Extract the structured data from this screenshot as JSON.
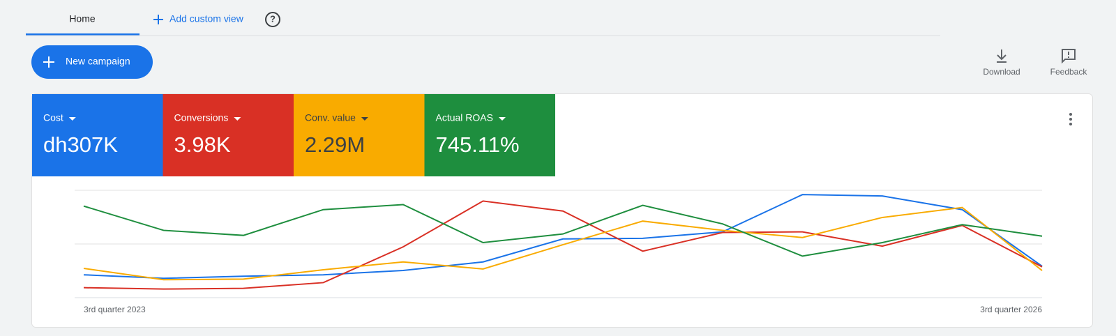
{
  "tabs": {
    "home": "Home",
    "add_view": "Add custom view"
  },
  "toolbar": {
    "new_campaign": "New campaign",
    "download": "Download",
    "feedback": "Feedback"
  },
  "chart_data": {
    "type": "line",
    "categories": [
      "3rd quarter 2023",
      null,
      null,
      null,
      null,
      null,
      null,
      null,
      null,
      null,
      null,
      null,
      "3rd quarter 2026"
    ],
    "ylim": [
      0,
      100
    ],
    "series": [
      {
        "name": "Cost",
        "summary": "dh307K",
        "color": "#1a73e8",
        "values": [
          21.3,
          18,
          20,
          21.3,
          25.3,
          33.3,
          54.7,
          55.3,
          61.3,
          96,
          94.7,
          82,
          29.3
        ]
      },
      {
        "name": "Conversions",
        "summary": "3.98K",
        "color": "#d93025",
        "values": [
          9.3,
          8,
          8.7,
          14,
          47.3,
          90,
          80.7,
          43.3,
          60.7,
          61.3,
          48,
          67.3,
          28.7
        ]
      },
      {
        "name": "Conv. value",
        "summary": "2.29M",
        "color": "#f9ab00",
        "values": [
          27.3,
          16.7,
          17.3,
          26,
          33.3,
          26.7,
          49.3,
          71.3,
          62.7,
          56,
          74.7,
          84,
          25.3
        ]
      },
      {
        "name": "Actual ROAS",
        "summary": "745.11%",
        "color": "#1e8e3e",
        "values": [
          85.3,
          62.7,
          58,
          82,
          86.7,
          51.3,
          59.3,
          86,
          68.7,
          38.7,
          51.3,
          68,
          57.3
        ]
      }
    ]
  }
}
